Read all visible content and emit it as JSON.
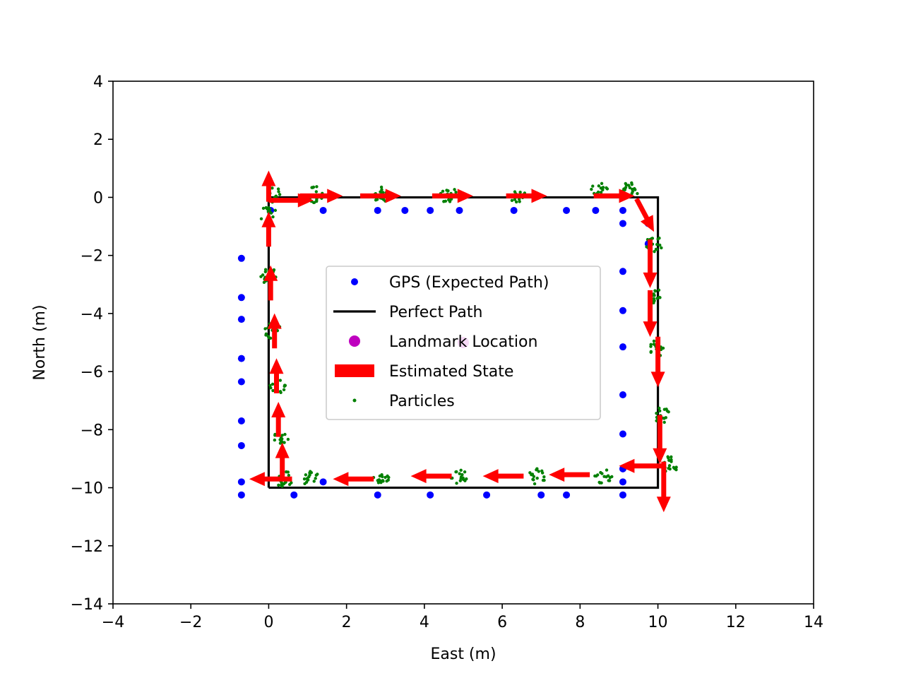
{
  "chart_data": {
    "type": "scatter",
    "title": "",
    "xlabel": "East (m)",
    "ylabel": "North (m)",
    "xlim": [
      -4,
      14
    ],
    "ylim": [
      -14,
      4
    ],
    "x_ticks": [
      -4,
      -2,
      0,
      2,
      4,
      6,
      8,
      10,
      12,
      14
    ],
    "y_ticks": [
      4,
      2,
      0,
      -2,
      -4,
      -6,
      -8,
      -10,
      -12,
      -14
    ],
    "x_tick_labels": [
      "−4",
      "−2",
      "0",
      "2",
      "4",
      "6",
      "8",
      "10",
      "12",
      "14"
    ],
    "y_tick_labels": [
      "4",
      "2",
      "0",
      "−2",
      "−4",
      "−6",
      "−8",
      "−10",
      "−12",
      "−14"
    ],
    "grid": false,
    "legend_position": "center",
    "colors": {
      "gps": "#0000ff",
      "perfect_path": "#000000",
      "landmark": "#bf00bf",
      "estimated_state": "#ff0000",
      "particles": "#008000"
    },
    "legend": [
      {
        "key": "gps",
        "label": "GPS (Expected Path)",
        "marker": "dot"
      },
      {
        "key": "perfect_path",
        "label": "Perfect Path",
        "marker": "line"
      },
      {
        "key": "landmark",
        "label": "Landmark Location",
        "marker": "big-dot"
      },
      {
        "key": "estimated_state",
        "label": "Estimated State",
        "marker": "rect"
      },
      {
        "key": "particles",
        "label": "Particles",
        "marker": "small-dot"
      }
    ],
    "series": [
      {
        "name": "GPS (Expected Path)",
        "key": "gps",
        "points": [
          [
            -0.7,
            -2.1
          ],
          [
            -0.7,
            -3.45
          ],
          [
            -0.7,
            -4.2
          ],
          [
            -0.7,
            -5.55
          ],
          [
            -0.7,
            -6.35
          ],
          [
            -0.7,
            -7.7
          ],
          [
            -0.7,
            -8.55
          ],
          [
            -0.7,
            -9.8
          ],
          [
            -0.7,
            -10.25
          ],
          [
            0.65,
            -10.25
          ],
          [
            2.8,
            -10.25
          ],
          [
            4.15,
            -10.25
          ],
          [
            5.6,
            -10.25
          ],
          [
            7.0,
            -10.25
          ],
          [
            7.65,
            -10.25
          ],
          [
            9.1,
            -10.25
          ],
          [
            1.4,
            -9.8
          ],
          [
            9.1,
            -9.8
          ],
          [
            9.1,
            -9.35
          ],
          [
            9.1,
            -8.15
          ],
          [
            9.1,
            -6.8
          ],
          [
            9.1,
            -5.15
          ],
          [
            9.1,
            -3.9
          ],
          [
            9.1,
            -2.55
          ],
          [
            9.1,
            -0.9
          ],
          [
            9.1,
            -0.45
          ],
          [
            9.75,
            -0.9
          ],
          [
            9.75,
            -1.6
          ],
          [
            0.05,
            -0.45
          ],
          [
            1.4,
            -0.45
          ],
          [
            2.8,
            -0.45
          ],
          [
            3.5,
            -0.45
          ],
          [
            4.15,
            -0.45
          ],
          [
            4.9,
            -0.45
          ],
          [
            6.3,
            -0.45
          ],
          [
            7.65,
            -0.45
          ],
          [
            8.4,
            -0.45
          ]
        ]
      },
      {
        "name": "Perfect Path",
        "key": "perfect_path",
        "points": [
          [
            0,
            -10
          ],
          [
            0,
            0
          ],
          [
            10,
            0
          ],
          [
            10,
            -10
          ],
          [
            0,
            -10
          ]
        ]
      },
      {
        "name": "Landmark Location",
        "key": "landmark",
        "points": [
          [
            5,
            -5
          ]
        ]
      },
      {
        "name": "Estimated State",
        "key": "estimated_state",
        "arrows": [
          [
            0.35,
            -9.65,
            0.0,
            0.9
          ],
          [
            0.25,
            -8.25,
            0.0,
            0.9
          ],
          [
            0.2,
            -6.75,
            0.0,
            0.9
          ],
          [
            0.15,
            -5.2,
            0.0,
            0.9
          ],
          [
            0.05,
            -3.55,
            0.0,
            0.9
          ],
          [
            0.0,
            -1.7,
            0.0,
            0.9
          ],
          [
            0.0,
            -0.15,
            0.0,
            0.8
          ],
          [
            0.0,
            -0.1,
            1.15,
            0.0
          ],
          [
            0.8,
            0.05,
            1.1,
            0.0
          ],
          [
            2.35,
            0.05,
            1.05,
            0.0
          ],
          [
            4.2,
            0.05,
            1.05,
            0.0
          ],
          [
            6.1,
            0.05,
            1.05,
            0.0
          ],
          [
            8.35,
            0.05,
            1.05,
            0.0
          ],
          [
            9.45,
            -0.05,
            0.45,
            -0.85
          ],
          [
            9.8,
            -1.45,
            0.0,
            -1.25
          ],
          [
            9.8,
            -3.2,
            0.0,
            -1.2
          ],
          [
            10.0,
            -4.8,
            0.0,
            -1.3
          ],
          [
            10.05,
            -7.5,
            0.0,
            -1.25
          ],
          [
            10.15,
            -9.1,
            0.0,
            -1.3
          ],
          [
            10.1,
            -9.25,
            -1.1,
            0.0
          ],
          [
            8.25,
            -9.55,
            -1.05,
            0.0
          ],
          [
            6.55,
            -9.6,
            -1.05,
            0.0
          ],
          [
            4.7,
            -9.6,
            -1.05,
            0.0
          ],
          [
            2.7,
            -9.7,
            -1.05,
            0.0
          ],
          [
            0.6,
            -9.7,
            -1.1,
            0.0
          ]
        ]
      },
      {
        "name": "Particles",
        "key": "particles",
        "clusters": [
          [
            0.4,
            -9.7
          ],
          [
            0.35,
            -8.3
          ],
          [
            0.25,
            -6.5
          ],
          [
            0.1,
            -4.6
          ],
          [
            0.0,
            -2.7
          ],
          [
            0.0,
            -0.6
          ],
          [
            0.15,
            0.05
          ],
          [
            1.2,
            0.1
          ],
          [
            2.9,
            0.1
          ],
          [
            4.6,
            0.1
          ],
          [
            6.4,
            0.1
          ],
          [
            8.5,
            0.25
          ],
          [
            9.3,
            0.25
          ],
          [
            9.9,
            -1.6
          ],
          [
            9.9,
            -3.4
          ],
          [
            10.0,
            -5.2
          ],
          [
            10.1,
            -7.5
          ],
          [
            10.3,
            -9.2
          ],
          [
            8.6,
            -9.6
          ],
          [
            6.9,
            -9.6
          ],
          [
            4.9,
            -9.6
          ],
          [
            2.9,
            -9.6
          ],
          [
            1.1,
            -9.7
          ]
        ],
        "cluster_size": 16,
        "spread_m": 0.22
      }
    ]
  }
}
